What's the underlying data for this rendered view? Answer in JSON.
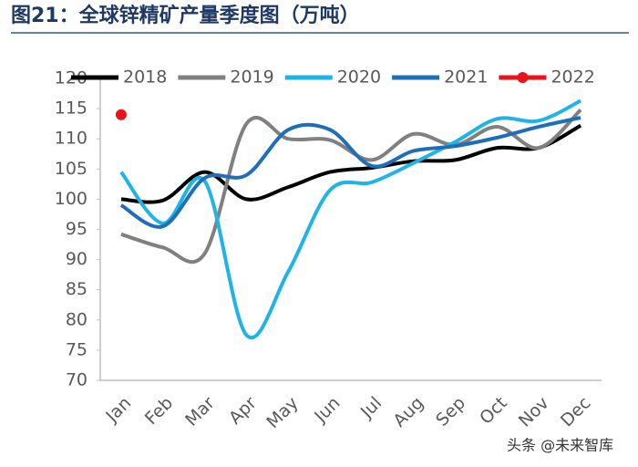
{
  "chart_data": {
    "type": "line",
    "title": "图21：全球锌精矿产量季度图（万吨）",
    "watermark": "头条 @未来智库",
    "categories": [
      "Jan",
      "Feb",
      "Mar",
      "Apr",
      "May",
      "Jun",
      "Jul",
      "Aug",
      "Sep",
      "Oct",
      "Nov",
      "Dec"
    ],
    "ylim": [
      70,
      120
    ],
    "yticks": [
      70,
      75,
      80,
      85,
      90,
      95,
      100,
      105,
      110,
      115,
      120
    ],
    "grid": false,
    "legend": "top",
    "series": [
      {
        "name": "2018",
        "color": "#000000",
        "values": [
          100,
          99.8,
          104.5,
          100,
          102,
          104.5,
          105.2,
          106.3,
          106.5,
          108.5,
          108.5,
          112.2
        ]
      },
      {
        "name": "2019",
        "color": "#808080",
        "values": [
          94.2,
          92,
          91,
          112.5,
          110,
          109.8,
          106.5,
          110.8,
          109,
          112,
          108.5,
          114.8
        ]
      },
      {
        "name": "2020",
        "color": "#1fb4e6",
        "values": [
          104.5,
          96,
          103,
          77.5,
          88,
          101.5,
          102.8,
          106,
          109.5,
          113.3,
          113,
          116.3
        ]
      },
      {
        "name": "2021",
        "color": "#1f6fb8",
        "values": [
          99,
          95.5,
          103.5,
          104,
          111.5,
          111.5,
          105.5,
          108,
          108.8,
          110.2,
          112,
          113.5
        ]
      },
      {
        "name": "2022",
        "color": "#e8131b",
        "marker": true,
        "values": [
          114,
          null,
          null,
          null,
          null,
          null,
          null,
          null,
          null,
          null,
          null,
          null
        ]
      }
    ]
  }
}
